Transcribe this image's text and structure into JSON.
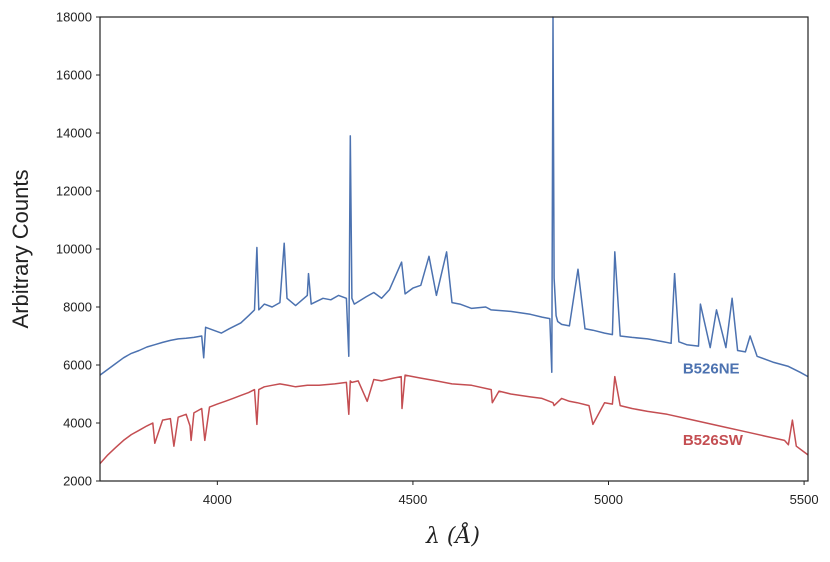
{
  "chart_data": {
    "type": "line",
    "title": "",
    "xlabel": "λ (Å)",
    "ylabel": "Arbitrary Counts",
    "xlim": [
      3700,
      5510
    ],
    "ylim": [
      2000,
      18000
    ],
    "x_ticks": [
      4000,
      4500,
      5000,
      5500
    ],
    "y_ticks": [
      2000,
      4000,
      6000,
      8000,
      10000,
      12000,
      14000,
      16000,
      18000
    ],
    "x_tick_labels": [
      "4000",
      "4500",
      "5000",
      "5500"
    ],
    "y_tick_labels": [
      "2000",
      "4000",
      "6000",
      "8000",
      "10000",
      "12000",
      "14000",
      "16000",
      "18000"
    ],
    "grid": false,
    "series": [
      {
        "name": "B526NE",
        "color": "#4c72b0",
        "x": [
          3700,
          3720,
          3740,
          3760,
          3780,
          3800,
          3820,
          3840,
          3860,
          3880,
          3900,
          3920,
          3940,
          3960,
          3965,
          3970,
          3990,
          4010,
          4030,
          4060,
          4080,
          4095,
          4101,
          4106,
          4120,
          4140,
          4160,
          4171,
          4178,
          4200,
          4230,
          4233,
          4240,
          4270,
          4290,
          4310,
          4330,
          4336,
          4340,
          4344,
          4350,
          4380,
          4400,
          4420,
          4440,
          4471,
          4480,
          4500,
          4520,
          4541,
          4560,
          4586,
          4600,
          4620,
          4650,
          4686,
          4700,
          4750,
          4800,
          4830,
          4850,
          4855,
          4858,
          4861,
          4866,
          4870,
          4880,
          4900,
          4922,
          4940,
          4960,
          4990,
          5010,
          5016,
          5030,
          5060,
          5100,
          5140,
          5160,
          5169,
          5180,
          5200,
          5230,
          5235,
          5260,
          5276,
          5300,
          5316,
          5330,
          5350,
          5362,
          5380,
          5420,
          5460,
          5490,
          5510
        ],
        "values": [
          5650,
          5850,
          6050,
          6250,
          6400,
          6500,
          6620,
          6700,
          6780,
          6850,
          6900,
          6920,
          6950,
          7000,
          6250,
          7300,
          7200,
          7100,
          7250,
          7450,
          7700,
          7900,
          10050,
          7900,
          8100,
          8000,
          8150,
          10200,
          8300,
          8050,
          8400,
          9150,
          8100,
          8300,
          8250,
          8400,
          8300,
          6300,
          13900,
          8300,
          8100,
          8350,
          8500,
          8300,
          8600,
          9550,
          8450,
          8650,
          8750,
          9750,
          8400,
          9900,
          8150,
          8100,
          7950,
          8000,
          7900,
          7850,
          7750,
          7650,
          7600,
          5750,
          18000,
          9000,
          7700,
          7500,
          7400,
          7350,
          9300,
          7250,
          7200,
          7100,
          7050,
          9900,
          7000,
          6950,
          6900,
          6800,
          6750,
          9150,
          6800,
          6700,
          6650,
          8100,
          6600,
          7900,
          6600,
          8300,
          6500,
          6450,
          7000,
          6300,
          6100,
          5950,
          5750,
          5600
        ]
      },
      {
        "name": "B526SW",
        "color": "#c44e52",
        "x": [
          3700,
          3720,
          3740,
          3760,
          3780,
          3800,
          3820,
          3835,
          3840,
          3860,
          3880,
          3889,
          3900,
          3920,
          3930,
          3933,
          3940,
          3960,
          3968,
          3980,
          4000,
          4020,
          4040,
          4060,
          4080,
          4095,
          4101,
          4106,
          4120,
          4140,
          4160,
          4180,
          4200,
          4230,
          4260,
          4300,
          4330,
          4336,
          4340,
          4344,
          4360,
          4383,
          4400,
          4420,
          4450,
          4470,
          4472,
          4480,
          4500,
          4520,
          4540,
          4560,
          4600,
          4650,
          4700,
          4703,
          4720,
          4750,
          4800,
          4830,
          4858,
          4861,
          4880,
          4900,
          4920,
          4950,
          4960,
          4990,
          5010,
          5016,
          5030,
          5060,
          5100,
          5150,
          5200,
          5250,
          5300,
          5350,
          5400,
          5450,
          5460,
          5470,
          5480,
          5500,
          5510
        ],
        "values": [
          2600,
          2900,
          3150,
          3400,
          3600,
          3750,
          3900,
          4000,
          3300,
          4100,
          4150,
          3200,
          4200,
          4300,
          3900,
          3400,
          4350,
          4500,
          3400,
          4550,
          4650,
          4750,
          4850,
          4950,
          5050,
          5150,
          3950,
          5150,
          5250,
          5300,
          5350,
          5300,
          5250,
          5300,
          5300,
          5350,
          5400,
          4300,
          5450,
          5400,
          5450,
          4750,
          5500,
          5450,
          5550,
          5600,
          4500,
          5650,
          5600,
          5550,
          5500,
          5450,
          5350,
          5300,
          5150,
          4700,
          5100,
          5000,
          4900,
          4850,
          4700,
          4600,
          4850,
          4750,
          4700,
          4600,
          3950,
          4700,
          4650,
          5600,
          4600,
          4500,
          4400,
          4300,
          4150,
          4000,
          3850,
          3700,
          3550,
          3400,
          3250,
          4100,
          3200,
          3000,
          2900
        ]
      }
    ],
    "annotations": [
      {
        "text": "B526NE",
        "x": 5190,
        "y": 5700,
        "color": "#4c72b0"
      },
      {
        "text": "B526SW",
        "x": 5190,
        "y": 3250,
        "color": "#c44e52"
      }
    ]
  }
}
